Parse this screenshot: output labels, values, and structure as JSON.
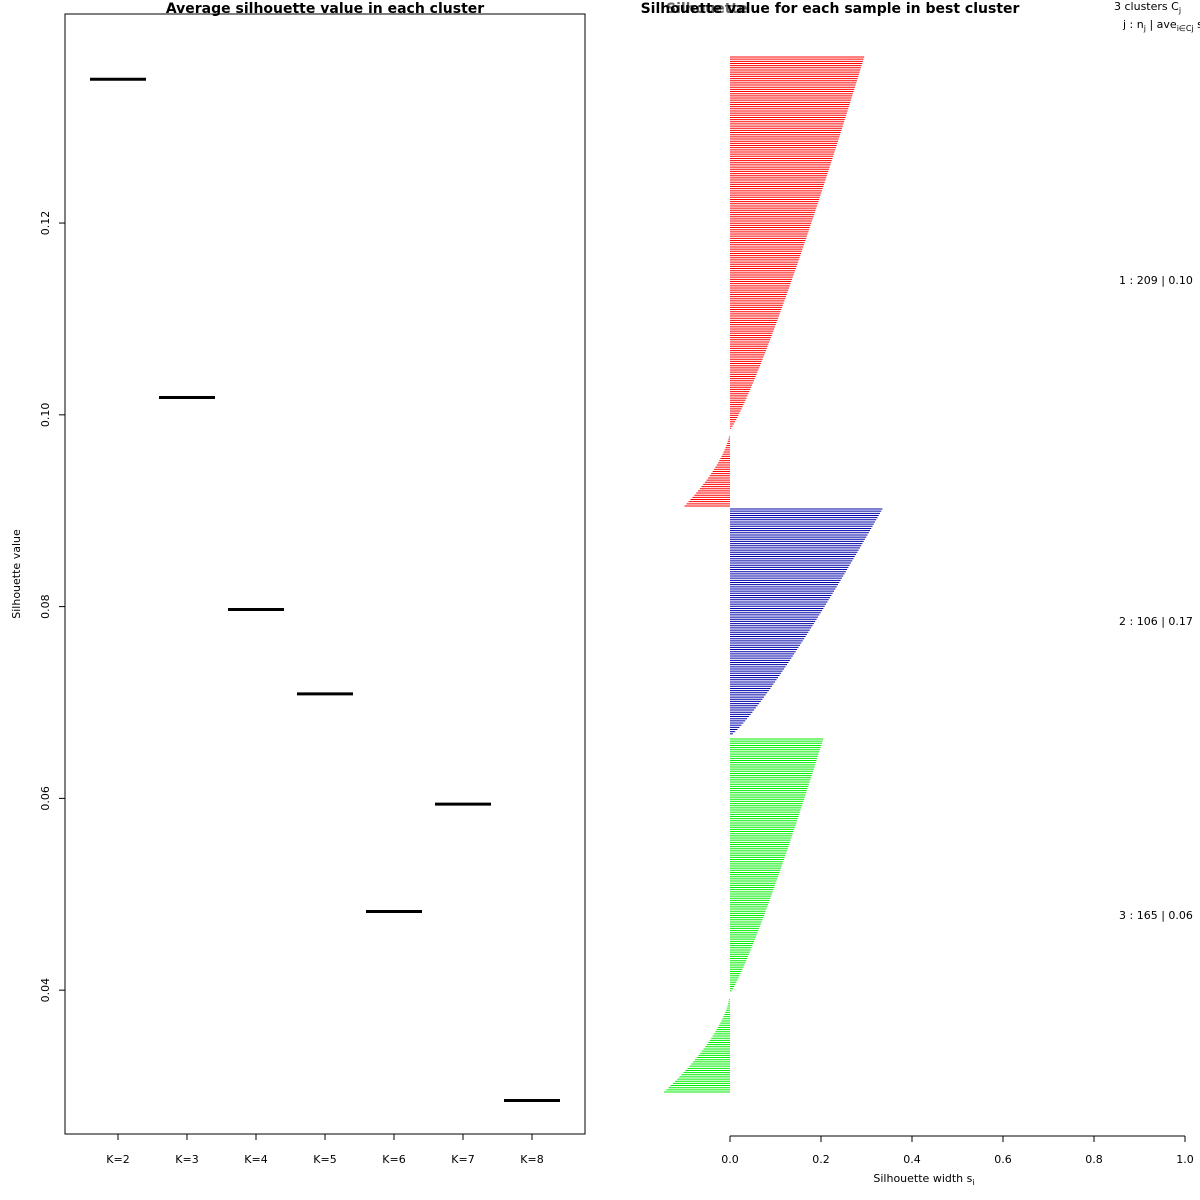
{
  "chart_data": [
    {
      "type": "scatter",
      "marker": "horizontal-segment",
      "title": "Average silhouette value in each cluster",
      "xlabel": "",
      "ylabel": "Silhouette value",
      "categories": [
        "K=2",
        "K=3",
        "K=4",
        "K=5",
        "K=6",
        "K=7",
        "K=8"
      ],
      "values": [
        0.135,
        0.1018,
        0.0797,
        0.0709,
        0.0482,
        0.0594,
        0.0285
      ],
      "ylim": [
        0.025,
        0.1418
      ],
      "yticks": [
        "0.04",
        "0.06",
        "0.08",
        "0.10",
        "0.12"
      ],
      "ytick_values": [
        0.04,
        0.06,
        0.08,
        0.1,
        0.12
      ],
      "color": "#000000"
    },
    {
      "type": "bar",
      "orientation": "horizontal",
      "title": "Silhouette value for each sample in best cluster",
      "overlapping_title_text": "Silhouette",
      "xlabel_main": "Silhouette width s",
      "xlabel_sub": "i",
      "xlim": [
        0,
        1
      ],
      "xticks": [
        "0.0",
        "0.2",
        "0.4",
        "0.6",
        "0.8",
        "1.0"
      ],
      "xtick_values": [
        0,
        0.2,
        0.4,
        0.6,
        0.8,
        1.0
      ],
      "legend_header": {
        "line1_main": "3  clusters  C",
        "line1_sub": "j",
        "line2_a": "j :  n",
        "line2_sub_j": "j",
        "line2_b": " | ave",
        "line2_sub_ij": "i∈Cj",
        "line2_c": "  s"
      },
      "clusters": [
        {
          "id": 1,
          "n": 209,
          "label": "1 :  209  |  0.10",
          "color": "#ff0000",
          "max": 0.295,
          "zero_fraction": 0.83,
          "min": -0.1
        },
        {
          "id": 2,
          "n": 106,
          "label": "2 :  106  |  0.17",
          "color": "#0000aa",
          "max": 0.335,
          "zero_fraction": 1.0,
          "min": 0.0
        },
        {
          "id": 3,
          "n": 165,
          "label": "3 :  165  |  0.06",
          "color": "#00ee00",
          "max": 0.205,
          "zero_fraction": 0.72,
          "min": -0.145
        }
      ]
    }
  ]
}
